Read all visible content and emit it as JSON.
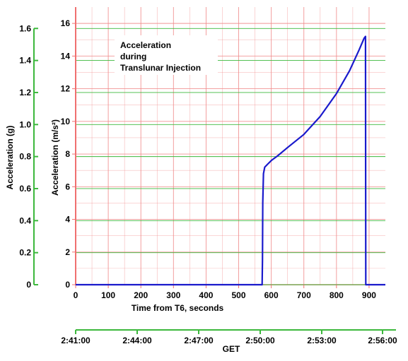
{
  "chart_data": {
    "type": "line",
    "title_lines": [
      "Acceleration",
      "during",
      "Translunar Injection"
    ],
    "xlabel": "Time from T6, seconds",
    "ylabel": "Acceleration (m/s²)",
    "y2label": "Acceleration (g)",
    "x2label": "GET",
    "xlim": [
      0,
      950
    ],
    "ylim": [
      0,
      17
    ],
    "y2lim": [
      0,
      1.6
    ],
    "x_ticks": [
      "0",
      "100",
      "200",
      "300",
      "400",
      "500",
      "600",
      "700",
      "800",
      "900"
    ],
    "y_ticks": [
      "0",
      "2",
      "4",
      "6",
      "8",
      "10",
      "12",
      "14",
      "16"
    ],
    "y2_ticks": [
      "0",
      "0.2",
      "0.4",
      "0.6",
      "0.8",
      "1.0",
      "1.2",
      "1.4",
      "1.6"
    ],
    "get_ticks": [
      "2:41:00",
      "2:44:00",
      "2:47:00",
      "2:50:00",
      "2:53:00",
      "2:56:00"
    ],
    "grid": true,
    "series": [
      {
        "color": "#1a1acc",
        "x": [
          0,
          572,
          573,
          574,
          576,
          580,
          585,
          590,
          600,
          620,
          650,
          700,
          750,
          800,
          840,
          870,
          885,
          889,
          889.5,
          890,
          950
        ],
        "y": [
          0,
          0,
          1.5,
          5.0,
          6.8,
          7.2,
          7.3,
          7.4,
          7.6,
          7.9,
          8.4,
          9.2,
          10.3,
          11.7,
          13.1,
          14.4,
          15.1,
          15.2,
          7,
          0,
          0
        ]
      }
    ],
    "colors": {
      "red_grid": "#f08a8a",
      "green_grid": "#3cb83c",
      "line": "#1a1acc"
    }
  }
}
